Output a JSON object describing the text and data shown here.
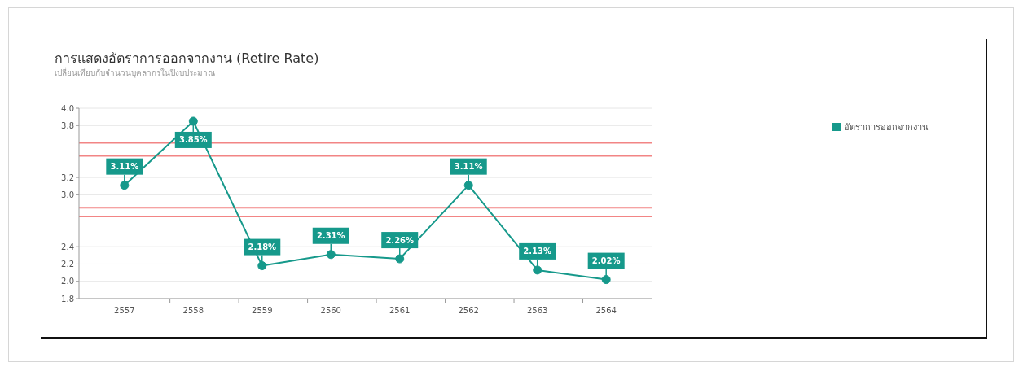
{
  "chart_data": {
    "type": "line",
    "title": "การแสดงอัตราการออกจากงาน (Retire Rate)",
    "subtitle": "เปลี่ยนเทียบกับจำนวนบุคลากรในปีงบประมาณ",
    "categories": [
      "2557",
      "2558",
      "2559",
      "2560",
      "2561",
      "2562",
      "2563",
      "2564"
    ],
    "series": [
      {
        "name": "อัตราการออกจากงาน",
        "color": "#16998b",
        "values": [
          3.11,
          3.85,
          2.18,
          2.31,
          2.26,
          3.11,
          2.13,
          2.02
        ],
        "value_labels": [
          "3.11%",
          "3.85%",
          "2.18%",
          "2.31%",
          "2.26%",
          "3.11%",
          "2.13%",
          "2.02%"
        ]
      }
    ],
    "ylim": [
      1.8,
      4.0
    ],
    "yticks": [
      1.8,
      {
        "value": 2,
        "label": "2.0"
      },
      2.2,
      2.4,
      {
        "value": 3,
        "label": "3.0"
      },
      3.2,
      3.8,
      {
        "value": 4,
        "label": "4.0"
      }
    ],
    "ref_lines": [
      {
        "axis": "y",
        "value": 3.6,
        "color": "#f28585"
      },
      {
        "axis": "y",
        "value": 3.45,
        "color": "#f28585"
      },
      {
        "axis": "y",
        "value": 2.85,
        "color": "#f28585"
      },
      {
        "axis": "y",
        "value": 2.75,
        "color": "#f28585"
      }
    ],
    "grid": "y",
    "legend": "top right",
    "marker": "circle",
    "line_style": "solid"
  }
}
